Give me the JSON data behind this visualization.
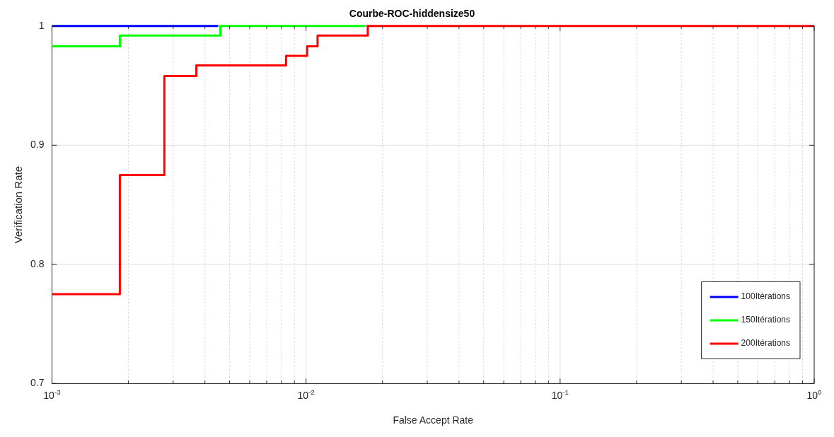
{
  "chart_data": {
    "type": "step",
    "title": "Courbe-ROC-hiddensize50",
    "xlabel": "False Accept Rate",
    "ylabel": "Verification Rate",
    "log": "x",
    "xlim": [
      0.001,
      1
    ],
    "ylim": [
      0.7,
      1
    ],
    "xticks": [
      {
        "value": 0.001,
        "label": "10$^{-3}$"
      },
      {
        "value": 0.002,
        "label": null
      },
      {
        "value": 0.003,
        "label": null
      },
      {
        "value": 0.004,
        "label": null
      },
      {
        "value": 0.005,
        "label": null
      },
      {
        "value": 0.006,
        "label": null
      },
      {
        "value": 0.007,
        "label": null
      },
      {
        "value": 0.008,
        "label": null
      },
      {
        "value": 0.009,
        "label": null
      },
      {
        "value": 0.01,
        "label": "10$^{-2}$"
      },
      {
        "value": 0.02,
        "label": null
      },
      {
        "value": 0.03,
        "label": null
      },
      {
        "value": 0.04,
        "label": null
      },
      {
        "value": 0.05,
        "label": null
      },
      {
        "value": 0.06,
        "label": null
      },
      {
        "value": 0.07,
        "label": null
      },
      {
        "value": 0.08,
        "label": null
      },
      {
        "value": 0.09,
        "label": null
      },
      {
        "value": 0.1,
        "label": "10$^{-1}$"
      },
      {
        "value": 0.2,
        "label": null
      },
      {
        "value": 0.3,
        "label": null
      },
      {
        "value": 0.4,
        "label": null
      },
      {
        "value": 0.5,
        "label": null
      },
      {
        "value": 0.6,
        "label": null
      },
      {
        "value": 0.7,
        "label": null
      },
      {
        "value": 0.8,
        "label": null
      },
      {
        "value": 0.9,
        "label": null
      },
      {
        "value": 1,
        "label": "10$^{0}$"
      }
    ],
    "yticks": [
      0.7,
      0.8,
      0.9,
      1
    ],
    "grid": true,
    "legend": "bottom right",
    "line_style": "solid",
    "marker": "none",
    "series": [
      {
        "name": "100Itérations",
        "color": "#0000ff",
        "x": [
          0.001,
          0.0045
        ],
        "values": [
          1,
          1
        ]
      },
      {
        "name": "150Itérations",
        "color": "#00ff00",
        "x": [
          0.001,
          0.00185,
          0.0046,
          0.017
        ],
        "values": [
          0.983,
          0.992,
          1,
          1
        ]
      },
      {
        "name": "200Itérations",
        "color": "#ff0000",
        "x": [
          0.001,
          0.00185,
          0.00277,
          0.0037,
          0.00834,
          0.0101,
          0.0111,
          0.0175,
          1
        ],
        "values": [
          0.775,
          0.875,
          0.958,
          0.967,
          0.975,
          0.983,
          0.992,
          1,
          1
        ]
      }
    ]
  }
}
